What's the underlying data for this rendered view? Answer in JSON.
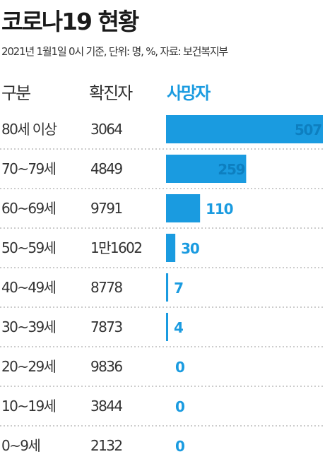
{
  "title": "코로나19 현황",
  "subtitle": "2021년 1월1일 0시 기준, 단위: 명, %, 자료: 보건복지부",
  "headers": {
    "category": "구분",
    "confirmed": "확진자",
    "deaths": "사망자"
  },
  "colors": {
    "bar": "#1a9be0",
    "accent": "#1a9be0",
    "divider": "#999999",
    "text": "#333333"
  },
  "chart_data": {
    "type": "bar",
    "orientation": "horizontal",
    "title": "코로나19 현황",
    "subtitle": "2021년 1월1일 0시 기준, 단위: 명, %, 자료: 보건복지부",
    "categories": [
      "80세 이상",
      "70~79세",
      "60~69세",
      "50~59세",
      "40~49세",
      "30~39세",
      "20~29세",
      "10~19세",
      "0~9세"
    ],
    "confirmed_labels": [
      "3064",
      "4849",
      "9791",
      "1만1602",
      "8778",
      "7873",
      "9836",
      "3844",
      "2132"
    ],
    "series": [
      {
        "name": "사망자",
        "values": [
          507,
          259,
          110,
          30,
          7,
          4,
          0,
          0,
          0
        ]
      }
    ],
    "grid": false,
    "legend": "none"
  }
}
